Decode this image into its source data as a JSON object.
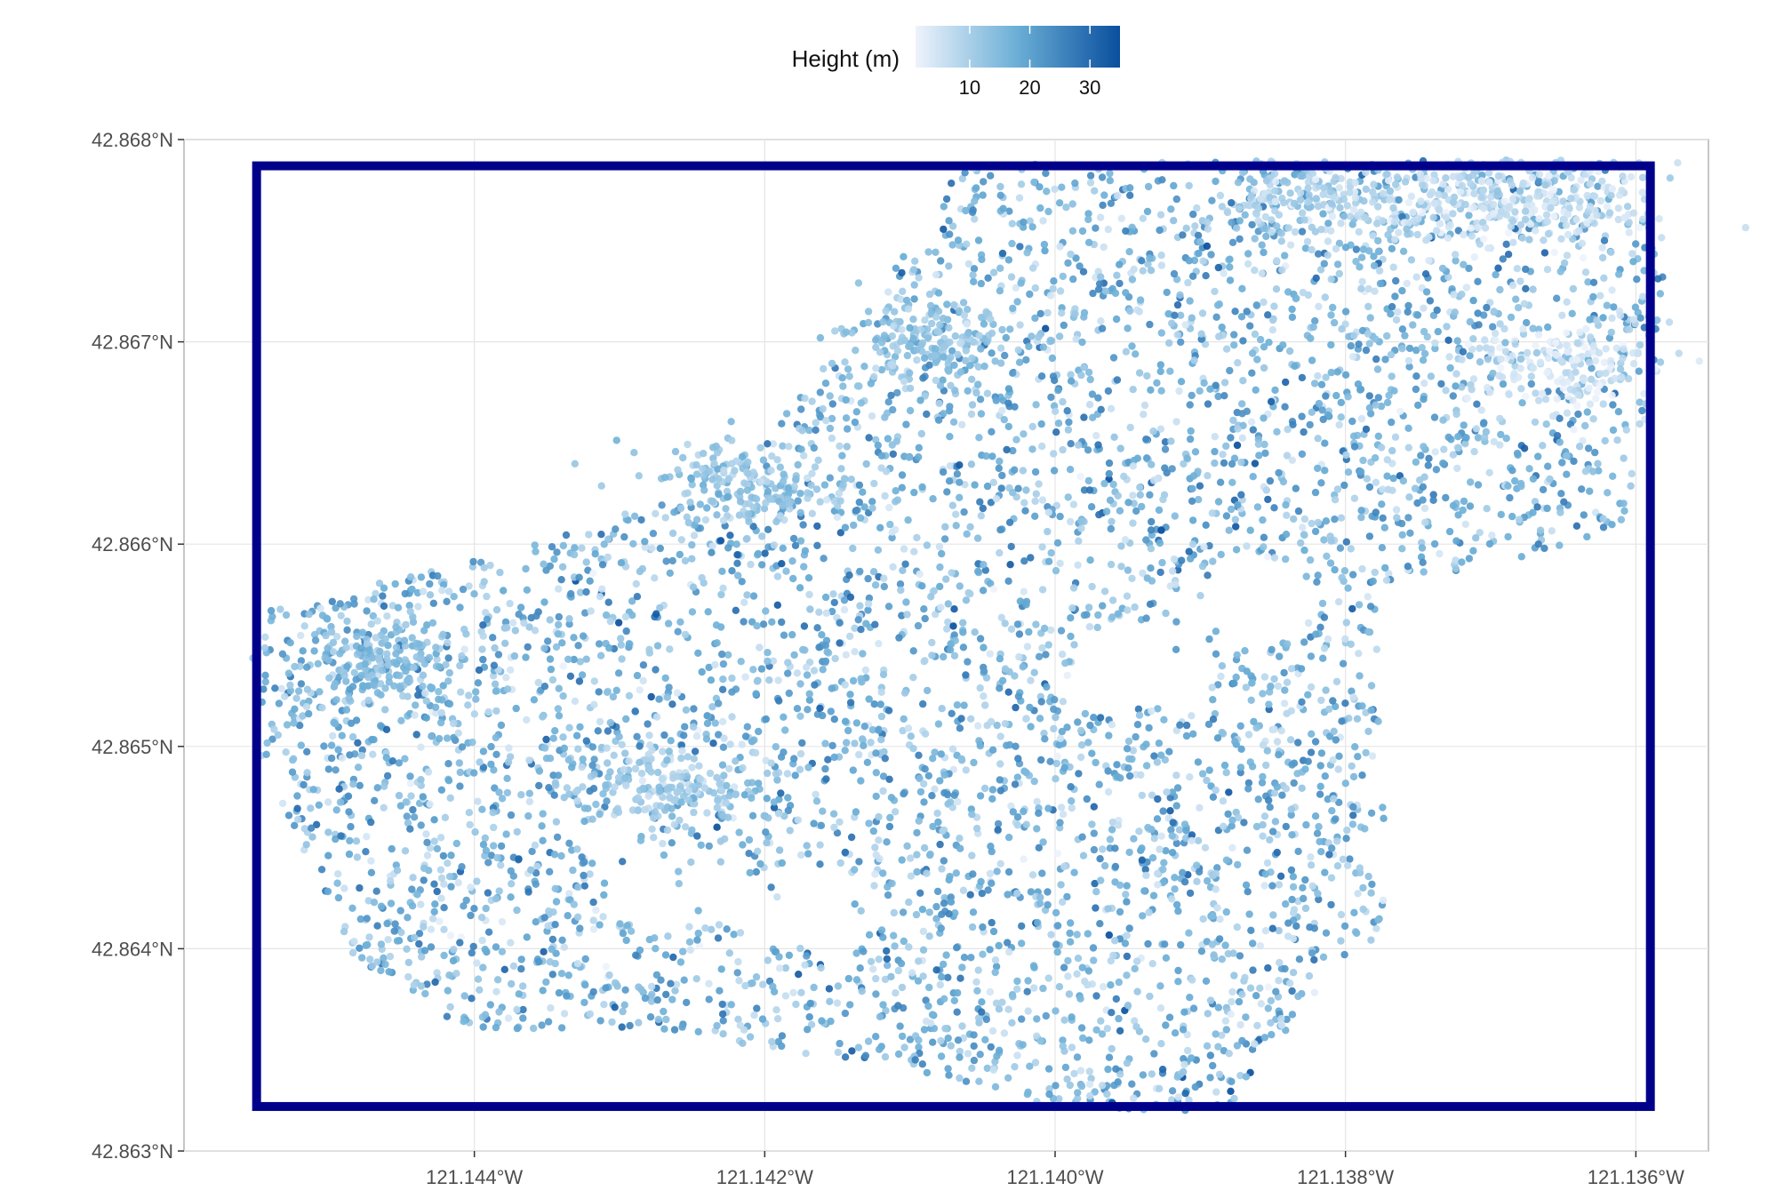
{
  "chart_data": {
    "type": "scatter",
    "title": "",
    "legend": {
      "title": "Height (m)",
      "placement": "top",
      "ticks": [
        10,
        20,
        30
      ],
      "range": [
        1,
        35
      ],
      "color_low": "#eef3fc",
      "color_high": "#0a4f9e"
    },
    "x_axis": {
      "ticks": [
        -121.144,
        -121.142,
        -121.14,
        -121.138,
        -121.136
      ],
      "tick_labels": [
        "121.144°W",
        "121.142°W",
        "121.140°W",
        "121.138°W",
        "121.136°W"
      ],
      "xlim": [
        -121.146,
        -121.1355
      ]
    },
    "y_axis": {
      "ticks": [
        42.863,
        42.864,
        42.865,
        42.866,
        42.867,
        42.868
      ],
      "tick_labels": [
        "42.863°N",
        "42.864°N",
        "42.865°N",
        "42.866°N",
        "42.867°N",
        "42.868°N"
      ],
      "ylim": [
        42.863,
        42.868
      ]
    },
    "bounding_box": {
      "lon": [
        -121.1455,
        -121.1359
      ],
      "lat": [
        42.86322,
        42.86787
      ],
      "color": "#00008b"
    },
    "grid": true,
    "point_region_polygon": [
      [
        -121.1452,
        42.8657
      ],
      [
        -121.1432,
        42.8661
      ],
      [
        -121.142,
        42.8665
      ],
      [
        -121.1412,
        42.8673
      ],
      [
        -121.1406,
        42.8679
      ],
      [
        -121.136,
        42.8679
      ],
      [
        -121.1358,
        42.8674
      ],
      [
        -121.136,
        42.8661
      ],
      [
        -121.1369,
        42.8659
      ],
      [
        -121.1378,
        42.8658
      ],
      [
        -121.1377,
        42.8641
      ],
      [
        -121.1383,
        42.8637
      ],
      [
        -121.1388,
        42.8632
      ],
      [
        -121.1399,
        42.8632
      ],
      [
        -121.141,
        42.8634
      ],
      [
        -121.1428,
        42.8636
      ],
      [
        -121.1441,
        42.8636
      ],
      [
        -121.1449,
        42.864
      ],
      [
        -121.1452,
        42.8645
      ],
      [
        -121.1455,
        42.865
      ],
      [
        -121.1454,
        42.8657
      ]
    ],
    "dense_clusters": [
      {
        "lon": -121.1372,
        "lat": 42.8677,
        "height": 7
      },
      {
        "lon": -121.1382,
        "lat": 42.8677,
        "height": 9
      },
      {
        "lon": -121.1365,
        "lat": 42.8677,
        "height": 6
      },
      {
        "lon": -121.1427,
        "lat": 42.8648,
        "height": 11
      },
      {
        "lon": -121.1421,
        "lat": 42.8663,
        "height": 12
      },
      {
        "lon": -121.1409,
        "lat": 42.867,
        "height": 13
      },
      {
        "lon": -121.1446,
        "lat": 42.8654,
        "height": 14
      },
      {
        "lon": -121.1365,
        "lat": 42.8669,
        "height": 5
      }
    ],
    "sparse_gaps": [
      {
        "lon": -121.1426,
        "lat": 42.8643
      },
      {
        "lon": -121.1394,
        "lat": 42.8654
      },
      {
        "lon": -121.1387,
        "lat": 42.8657
      },
      {
        "lon": -121.1417,
        "lat": 42.8642
      }
    ],
    "n_points": 5200
  }
}
